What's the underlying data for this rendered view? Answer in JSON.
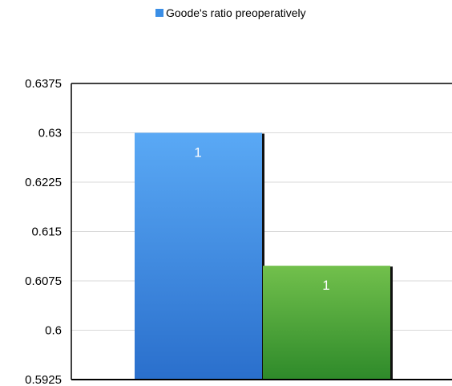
{
  "chart_data": {
    "type": "bar",
    "series": [
      {
        "name": "Goode's ratio preoperatively",
        "value": 0.63,
        "label": "1",
        "color": "#3a8ee6"
      },
      {
        "name": "",
        "value": 0.6098,
        "label": "1",
        "color": "#4aa339"
      }
    ],
    "legend": {
      "position": "top",
      "entries": [
        "Goode's ratio preoperatively"
      ]
    },
    "y_ticks": [
      "0.5925",
      "0.6",
      "0.6075",
      "0.615",
      "0.6225",
      "0.63",
      "0.6375"
    ],
    "ylim": [
      0.5925,
      0.6375
    ],
    "grid": true
  }
}
